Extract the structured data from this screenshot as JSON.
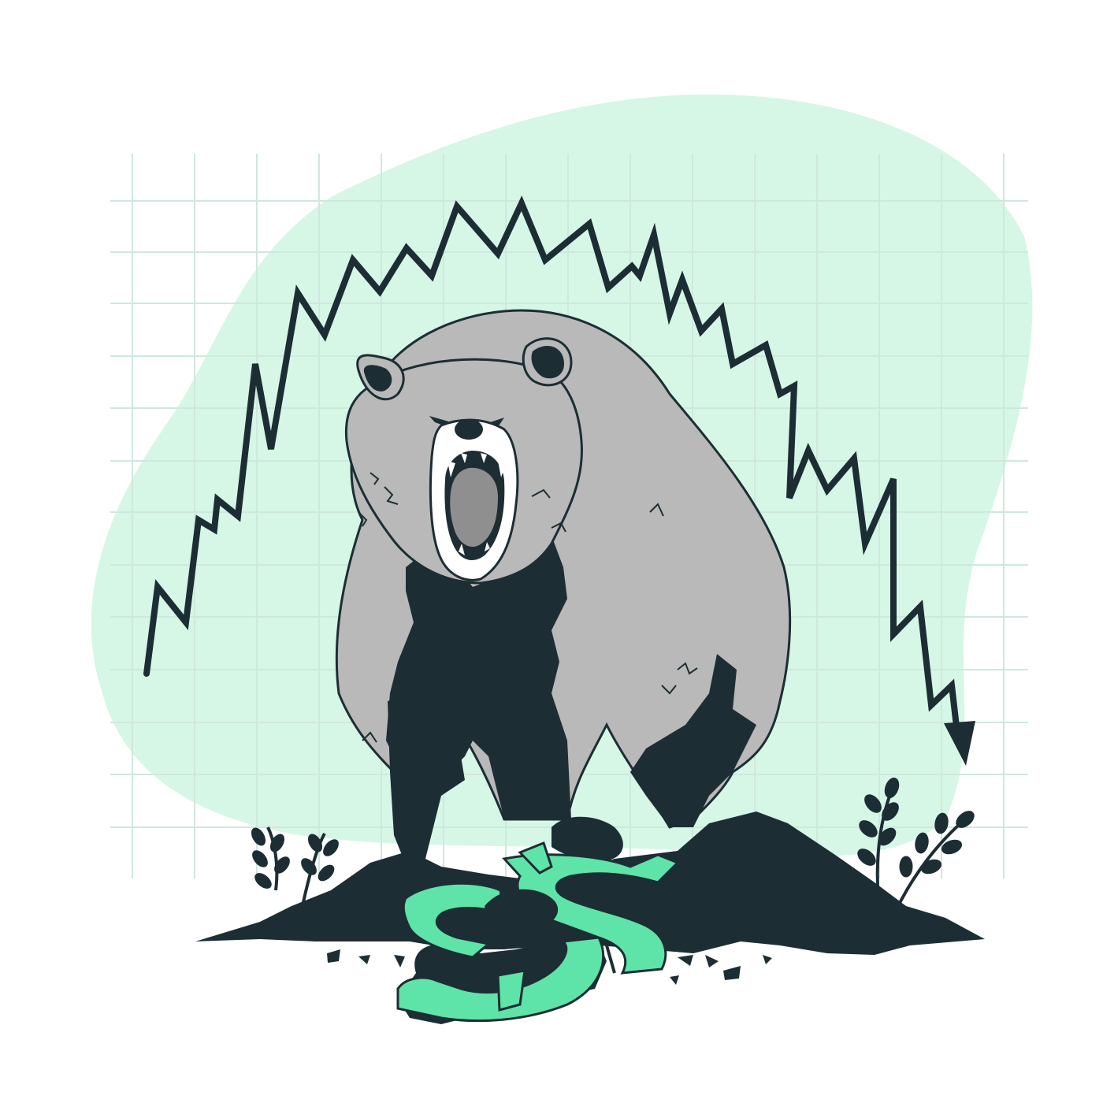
{
  "illustration": {
    "background_blob_color": "#d6f7e6",
    "grid_color": "#cfe8dd",
    "ink_color": "#1d2d34",
    "bear_fur_color": "#b9b9b9",
    "bear_mouth_color": "#8f8f8f",
    "dollar_color": "#5ee4a8",
    "trend": "down",
    "icons": [
      "bear-icon",
      "dollar-sign-icon",
      "down-arrow-icon",
      "plant-icon"
    ]
  }
}
